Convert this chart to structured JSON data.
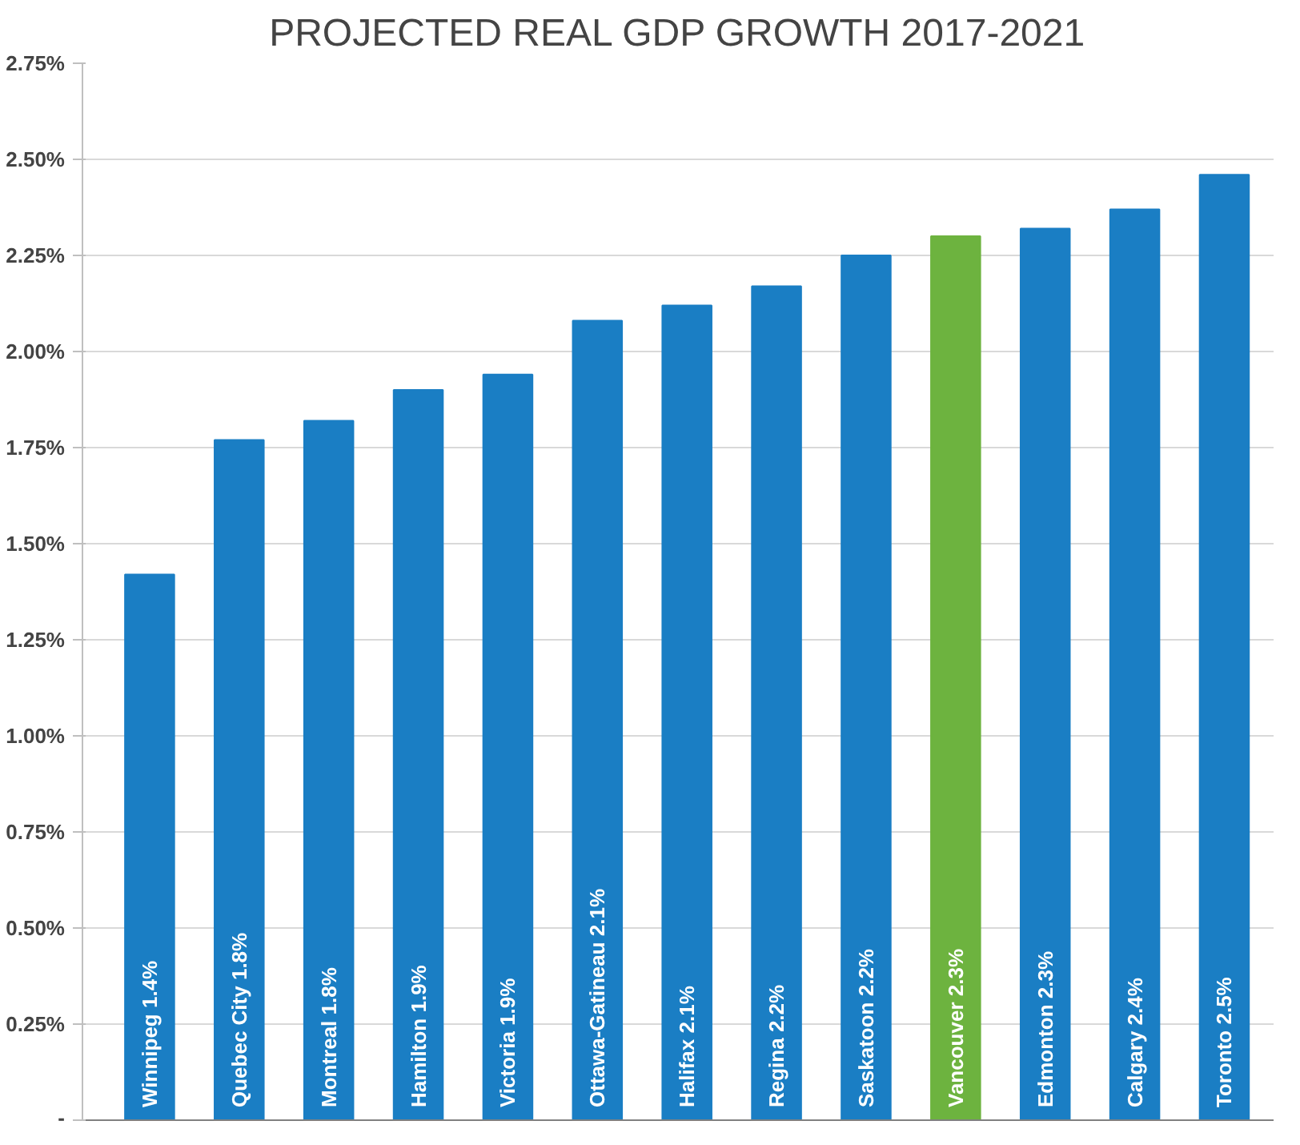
{
  "chart_data": {
    "type": "bar",
    "title": "PROJECTED REAL GDP GROWTH 2017-2021",
    "categories": [
      null,
      null,
      null,
      null,
      null,
      null,
      null,
      null,
      null,
      null,
      null,
      null,
      null
    ],
    "values": [
      1.42,
      1.77,
      1.82,
      1.9,
      1.94,
      2.08,
      2.12,
      2.17,
      2.25,
      2.3,
      2.32,
      2.37,
      2.46
    ],
    "colors": [
      "#1a7ec4",
      "#1a7ec4",
      "#1a7ec4",
      "#1a7ec4",
      "#1a7ec4",
      "#1a7ec4",
      "#1a7ec4",
      "#1a7ec4",
      "#1a7ec4",
      "#6db33f",
      "#1a7ec4",
      "#1a7ec4",
      "#1a7ec4"
    ],
    "value_labels": [
      "Winnipeg 1.4%",
      "Quebec City 1.8%",
      "Montreal 1.8%",
      "Hamilton 1.9%",
      "Victoria 1.9%",
      "Ottawa-Gatineau 2.1%",
      "Halifax 2.1%",
      "Regina 2.2%",
      "Saskatoon 2.2%",
      "Vancouver 2.3%",
      "Edmonton 2.3%",
      "Calgary 2.4%",
      "Toronto 2.5%"
    ],
    "ylim": [
      0,
      2.75
    ],
    "yticks": [
      {
        "value": 0,
        "label": "-"
      },
      {
        "value": 0.25,
        "label": "0.25%"
      },
      {
        "value": 0.5,
        "label": "0.50%"
      },
      {
        "value": 0.75,
        "label": "0.75%"
      },
      {
        "value": 1.0,
        "label": "1.00%"
      },
      {
        "value": 1.25,
        "label": "1.25%"
      },
      {
        "value": 1.5,
        "label": "1.50%"
      },
      {
        "value": 1.75,
        "label": "1.75%"
      },
      {
        "value": 2.0,
        "label": "2.00%"
      },
      {
        "value": 2.25,
        "label": "2.25%"
      },
      {
        "value": 2.5,
        "label": "2.50%"
      },
      {
        "value": 2.75,
        "label": "2.75%"
      }
    ],
    "grid": "y"
  }
}
